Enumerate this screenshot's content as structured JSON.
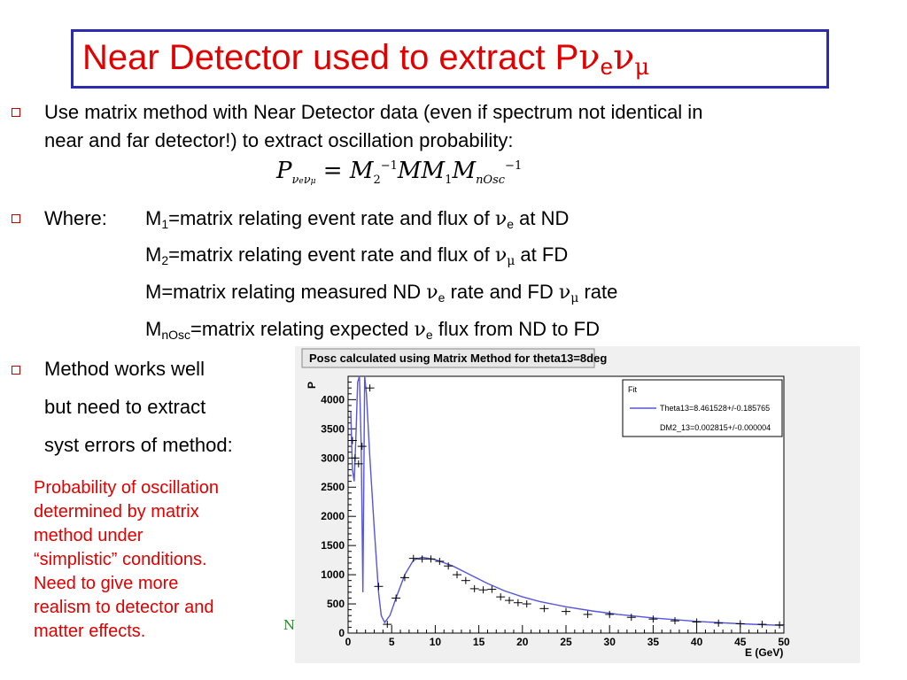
{
  "title": {
    "text": "Near Detector used to extract P",
    "nu1": "ν",
    "sub1": "e",
    "nu2": "ν",
    "sub2": "μ"
  },
  "bullets": {
    "b1_line1": "Use matrix method with Near Detector data (even if spectrum not identical in",
    "b1_line2": "near and far detector!) to extract oscillation probability:",
    "where_label": "Where:",
    "m1_pre": "M",
    "m1_sub": "1",
    "m1_post": "=matrix relating event rate and flux of ",
    "m1_nu": "ν",
    "m1_nusub": "e",
    "m1_end": " at ND",
    "m2_pre": "M",
    "m2_sub": "2",
    "m2_post": "=matrix relating event rate and flux of ",
    "m2_nu": "ν",
    "m2_nusub": "μ",
    "m2_end": " at FD",
    "m_pre": "M=matrix relating measured ND ",
    "m_nu1": "ν",
    "m_nusub1": "e",
    "m_mid": " rate and FD ",
    "m_nu2": "ν",
    "m_nusub2": "μ",
    "m_end": " rate",
    "mn_pre": "M",
    "mn_sub": "nOsc",
    "mn_post": "=matrix relating expected ",
    "mn_nu": "ν",
    "mn_nusub": "e",
    "mn_end": " flux from ND to FD",
    "b3_line1": "Method works well",
    "b3_line2": "but need to extract",
    "b3_line3": "syst errors of method:"
  },
  "formula": {
    "lhs": "P",
    "lhs_sub1": "ν",
    "lhs_sub1e": "e",
    "lhs_sub2": "ν",
    "lhs_sub2m": "μ",
    "eq": " = ",
    "m2": "M",
    "m2_sub": "2",
    "m2_sup": "−1",
    "mm": "MM",
    "m1_sub": "1",
    "m3": "M",
    "m3_sub": "nOsc",
    "m3_sup": "−1"
  },
  "red_note": [
    "Probability of oscillation",
    "determined by matrix",
    "method under",
    "“simplistic” conditions.",
    "Need to give more",
    "realism to detector and",
    "matter effects."
  ],
  "fragment": "N",
  "chart_data": {
    "type": "line",
    "title": "Posc calculated using Matrix Method for theta13=8deg",
    "xlabel": "E (GeV)",
    "ylabel": "P",
    "xlim": [
      0,
      50
    ],
    "ylim": [
      0,
      4400
    ],
    "xticks": [
      0,
      5,
      10,
      15,
      20,
      25,
      30,
      35,
      40,
      45,
      50
    ],
    "yticks": [
      0,
      500,
      1000,
      1500,
      2000,
      2500,
      3000,
      3500,
      4000
    ],
    "legend": {
      "header": "Fit",
      "entry": "Theta13=8.461528+/-0.185765",
      "entry2": "DM2_13=0.002815+/-0.000004"
    },
    "colors": {
      "fit": "#5555dd",
      "points": "#000000",
      "title_bg": "#e8e8e8"
    },
    "fit_curve": [
      [
        0.3,
        3800
      ],
      [
        0.5,
        2800
      ],
      [
        0.7,
        2600
      ],
      [
        0.9,
        3400
      ],
      [
        1.1,
        4300
      ],
      [
        1.3,
        4400
      ],
      [
        1.5,
        3200
      ],
      [
        1.7,
        700
      ],
      [
        1.9,
        4400
      ],
      [
        2.1,
        4100
      ],
      [
        2.5,
        3000
      ],
      [
        3.0,
        1800
      ],
      [
        3.5,
        700
      ],
      [
        3.8,
        300
      ],
      [
        4.2,
        180
      ],
      [
        4.8,
        300
      ],
      [
        5.5,
        600
      ],
      [
        6.5,
        1000
      ],
      [
        7.5,
        1250
      ],
      [
        8.5,
        1300
      ],
      [
        10,
        1260
      ],
      [
        12,
        1150
      ],
      [
        14,
        1000
      ],
      [
        16,
        850
      ],
      [
        18,
        720
      ],
      [
        20,
        620
      ],
      [
        22,
        540
      ],
      [
        25,
        450
      ],
      [
        28,
        380
      ],
      [
        31,
        320
      ],
      [
        35,
        260
      ],
      [
        40,
        200
      ],
      [
        45,
        160
      ],
      [
        50,
        130
      ]
    ],
    "points": [
      [
        0.5,
        3300
      ],
      [
        0.8,
        3000
      ],
      [
        1.2,
        2900
      ],
      [
        1.6,
        3200
      ],
      [
        2.5,
        4200
      ],
      [
        3.5,
        800
      ],
      [
        4.5,
        150
      ],
      [
        5.5,
        600
      ],
      [
        6.5,
        950
      ],
      [
        7.5,
        1280
      ],
      [
        8.5,
        1270
      ],
      [
        9.5,
        1270
      ],
      [
        10.5,
        1230
      ],
      [
        11.5,
        1150
      ],
      [
        12.5,
        1000
      ],
      [
        13.5,
        900
      ],
      [
        14.5,
        760
      ],
      [
        15.5,
        740
      ],
      [
        16.5,
        750
      ],
      [
        17.5,
        620
      ],
      [
        18.5,
        560
      ],
      [
        19.5,
        520
      ],
      [
        20.5,
        500
      ],
      [
        22.5,
        420
      ],
      [
        25,
        370
      ],
      [
        27.5,
        320
      ],
      [
        30,
        320
      ],
      [
        32.5,
        270
      ],
      [
        35,
        240
      ],
      [
        37.5,
        210
      ],
      [
        40,
        190
      ],
      [
        42.5,
        170
      ],
      [
        45,
        160
      ],
      [
        47.5,
        150
      ],
      [
        49.5,
        140
      ]
    ]
  }
}
